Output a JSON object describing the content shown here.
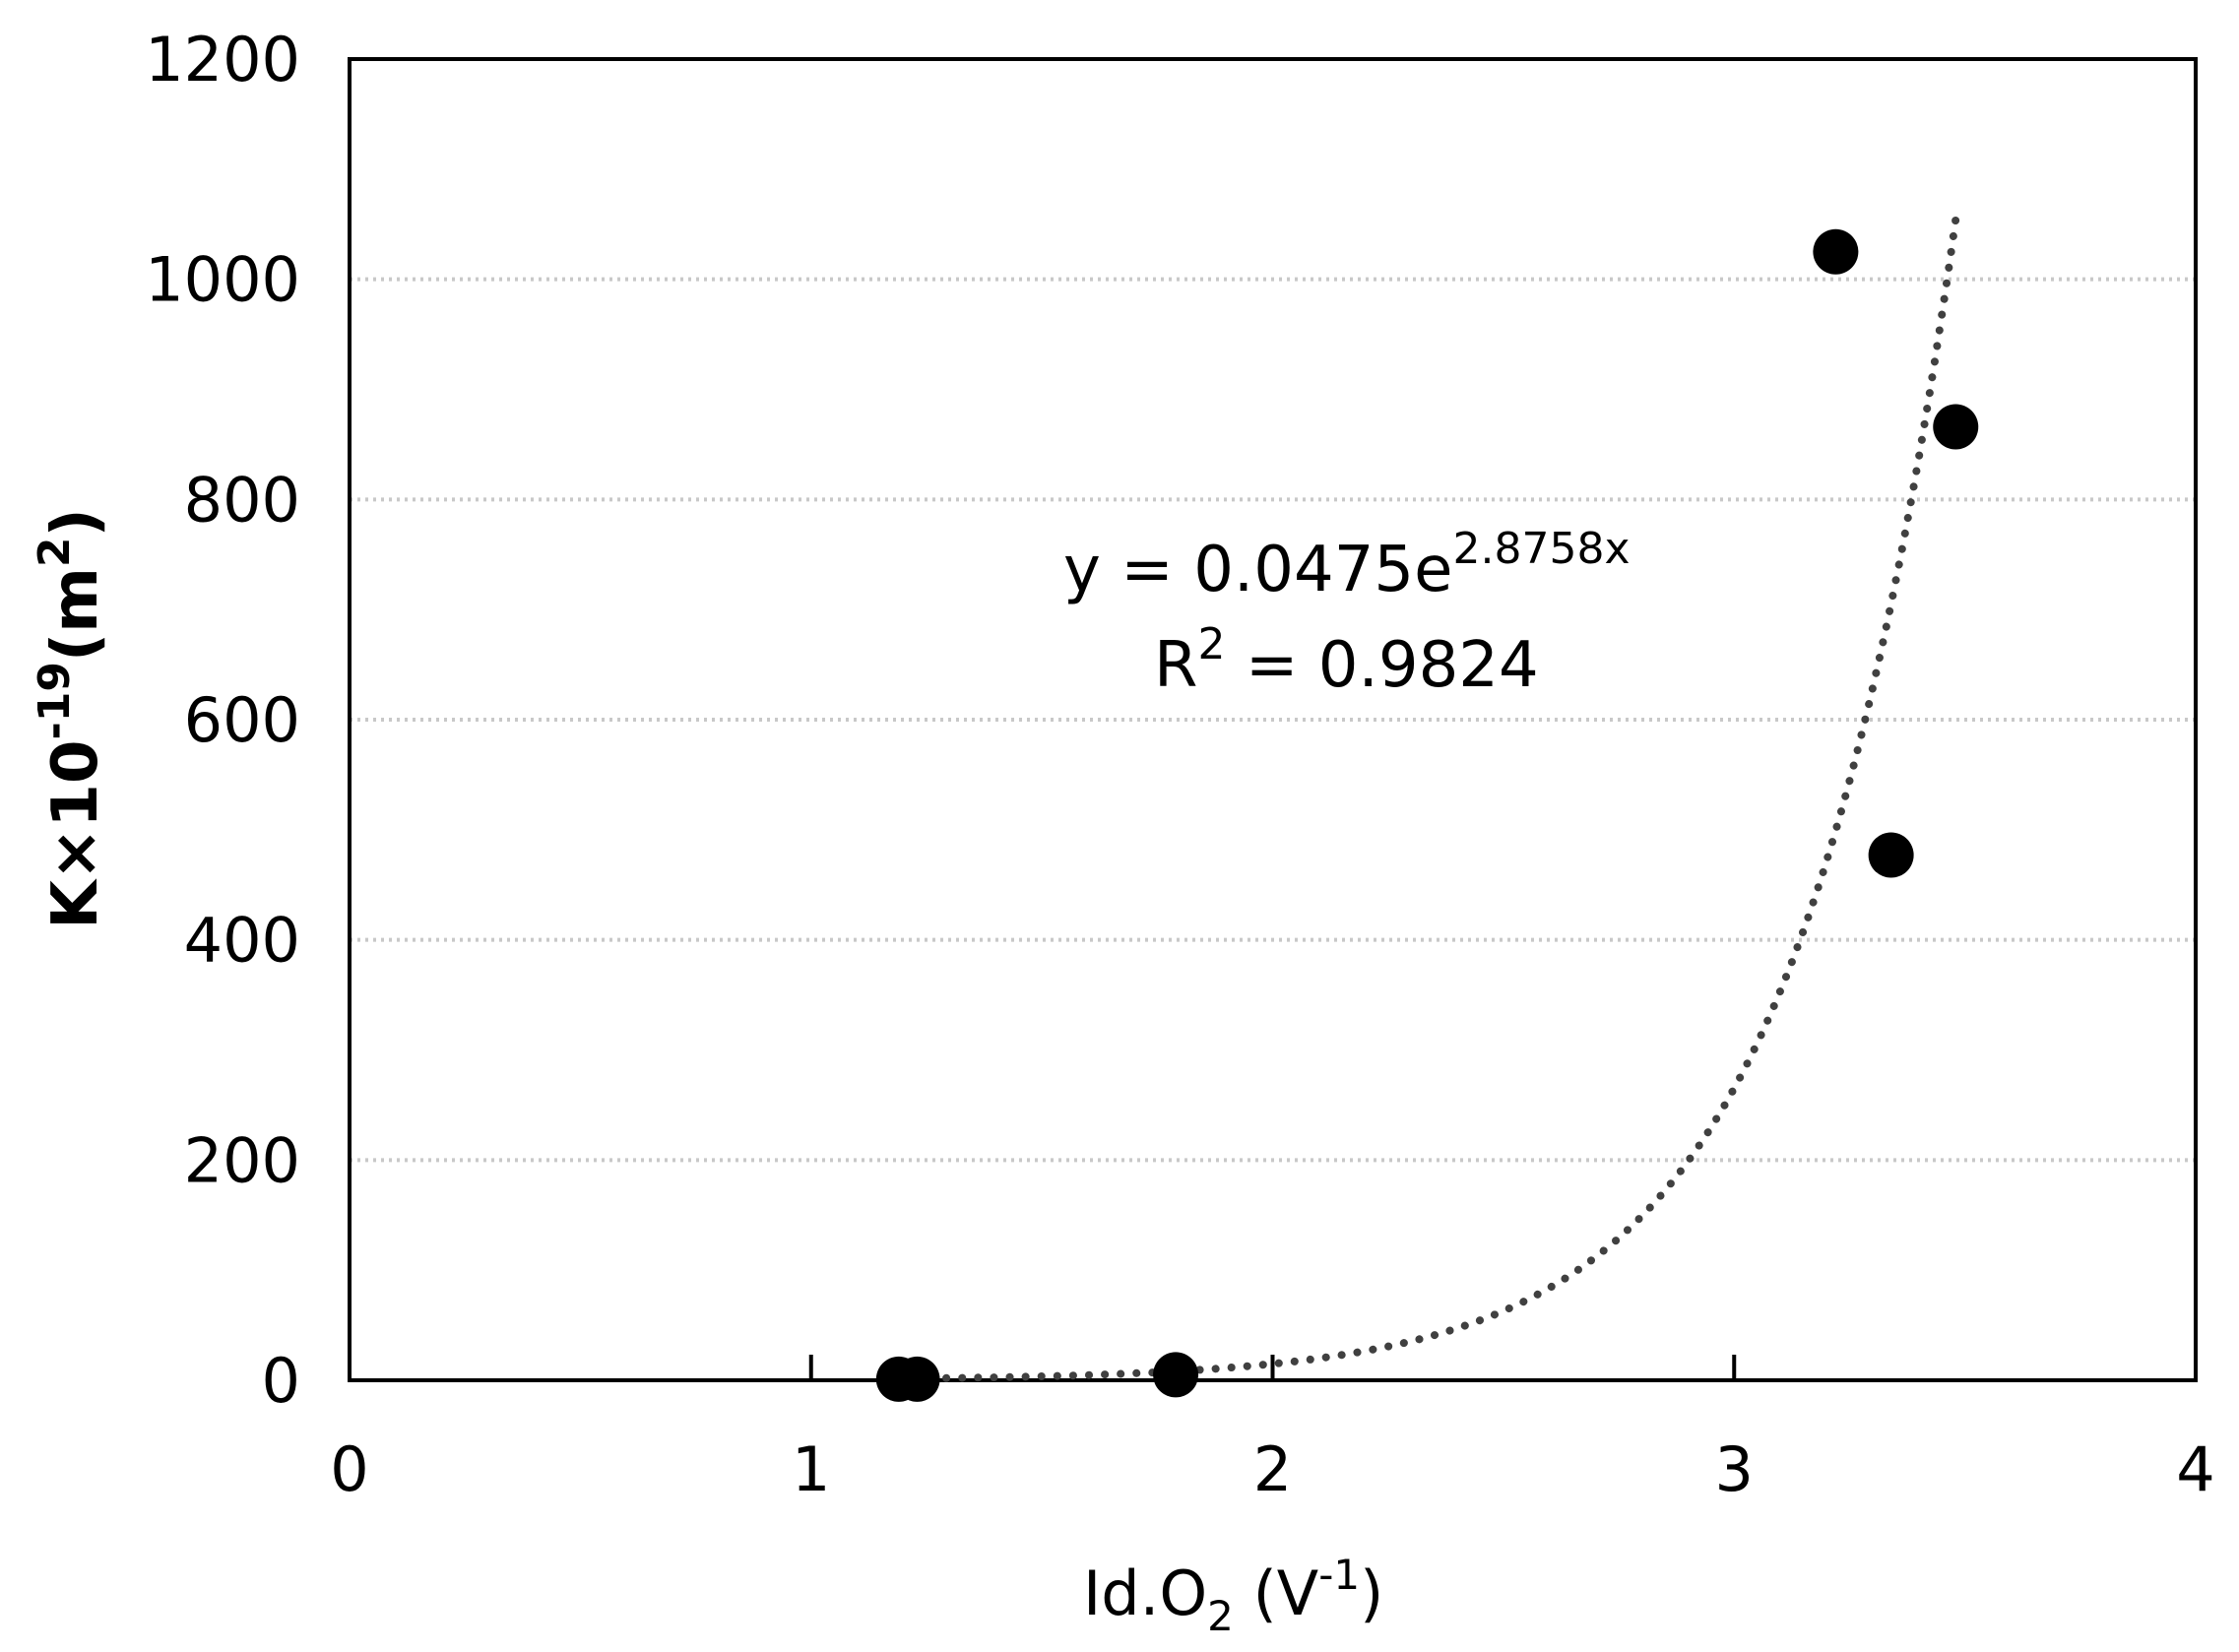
{
  "chart_data": {
    "type": "scatter",
    "xlim": [
      0,
      4
    ],
    "ylim": [
      0,
      1200
    ],
    "x_ticks": [
      "0",
      "1",
      "2",
      "3",
      "4"
    ],
    "y_ticks": [
      "0",
      "200",
      "400",
      "600",
      "800",
      "1000",
      "1200"
    ],
    "grid": {
      "horizontal": true,
      "vertical": false,
      "style": "dotted"
    },
    "xlabel": {
      "main": "Id.O",
      "sub": "2",
      "unit_open": " (V",
      "sup": "-1",
      "unit_close": ")"
    },
    "ylabel": {
      "main": "K×10",
      "sup": "-19",
      "unit_open": "(m",
      "sup2": "2",
      "unit_close": ")"
    },
    "series": [
      {
        "points": [
          {
            "x": 1.19,
            "y": 1
          },
          {
            "x": 1.23,
            "y": 1
          },
          {
            "x": 1.79,
            "y": 5
          },
          {
            "x": 3.22,
            "y": 1025
          },
          {
            "x": 3.34,
            "y": 477
          },
          {
            "x": 3.48,
            "y": 866
          }
        ],
        "marker_color": "#000000"
      }
    ],
    "trendline": {
      "type": "exponential",
      "a": 0.0475,
      "b": 2.8758,
      "x_from": 1.19,
      "x_to": 3.48,
      "color": "#404040",
      "style": "dotted"
    },
    "annotation": {
      "equation_prefix": "y = 0.0475e",
      "equation_exponent": "2.8758x",
      "r2_prefix": "R",
      "r2_sup": "2",
      "r2_value": " = 0.9824"
    }
  }
}
